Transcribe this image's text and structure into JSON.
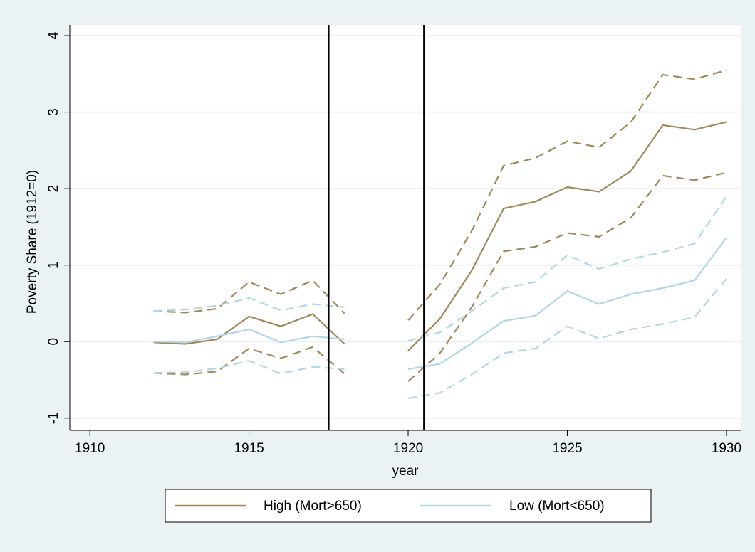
{
  "chart_data": {
    "type": "line",
    "x_label": "year",
    "y_label": "Poverty Share  (1912=0)",
    "x": [
      1912,
      1913,
      1914,
      1915,
      1916,
      1917,
      1918,
      1919,
      1920,
      1921,
      1922,
      1923,
      1924,
      1925,
      1926,
      1927,
      1928,
      1929,
      1930
    ],
    "series": [
      {
        "name": "High (Mort>650)",
        "color": "#a08a5c",
        "values": [
          -0.01,
          -0.03,
          0.03,
          0.33,
          0.2,
          0.36,
          -0.03,
          null,
          -0.12,
          0.3,
          0.93,
          1.74,
          1.83,
          2.02,
          1.96,
          2.23,
          2.83,
          2.77,
          2.87
        ],
        "upper": [
          0.4,
          0.38,
          0.43,
          0.78,
          0.62,
          0.8,
          0.37,
          null,
          0.28,
          0.75,
          1.45,
          2.3,
          2.4,
          2.62,
          2.54,
          2.87,
          3.49,
          3.43,
          3.55
        ],
        "lower": [
          -0.41,
          -0.43,
          -0.39,
          -0.09,
          -0.22,
          -0.07,
          -0.42,
          null,
          -0.52,
          -0.15,
          0.45,
          1.18,
          1.24,
          1.42,
          1.37,
          1.62,
          2.17,
          2.11,
          2.21
        ]
      },
      {
        "name": "Low (Mort<650)",
        "color": "#b0d8e4",
        "values": [
          0.0,
          -0.01,
          0.07,
          0.16,
          -0.01,
          0.07,
          0.03,
          null,
          -0.36,
          -0.29,
          -0.02,
          0.27,
          0.34,
          0.66,
          0.49,
          0.62,
          0.7,
          0.8,
          1.36
        ],
        "upper": [
          0.4,
          0.42,
          0.47,
          0.57,
          0.41,
          0.49,
          0.45,
          null,
          0.01,
          0.12,
          0.4,
          0.7,
          0.78,
          1.13,
          0.95,
          1.08,
          1.17,
          1.28,
          1.9
        ],
        "lower": [
          -0.41,
          -0.4,
          -0.35,
          -0.25,
          -0.42,
          -0.33,
          -0.36,
          null,
          -0.74,
          -0.67,
          -0.43,
          -0.15,
          -0.09,
          0.2,
          0.04,
          0.16,
          0.23,
          0.32,
          0.82
        ]
      }
    ],
    "vertical_lines": [
      1917.5,
      1920.5
    ],
    "xlim": [
      1909.37,
      1930.45
    ],
    "xticks": [
      1910,
      1915,
      1920,
      1925,
      1930
    ],
    "ylim": [
      -1.16,
      4.14
    ],
    "yticks": [
      -1,
      0,
      1,
      2,
      3,
      4
    ],
    "grid": true,
    "legend_position": "bottom"
  }
}
